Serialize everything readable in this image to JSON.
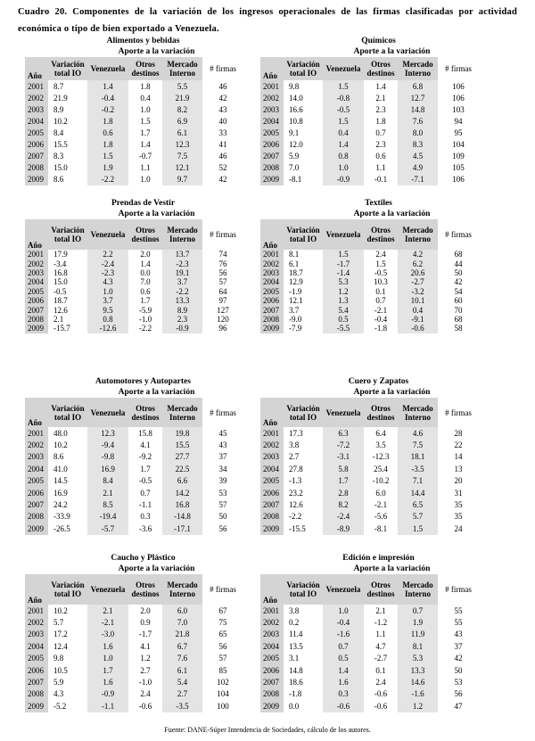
{
  "header": {
    "title": "Cuadro 20. Componentes de la variación de los ingresos operacionales de las firmas clasificadas por actividad económica o tipo de bien exportado a Venezuela."
  },
  "subheader": "Aporte a la variación",
  "columns": [
    "Año",
    "Variación total IO",
    "Venezuela",
    "Otros destinos",
    "Mercado Interno",
    "# firmas"
  ],
  "tables": [
    {
      "title": "Alimentos y bebidas",
      "rows": [
        [
          "2001",
          "8.7",
          "1.4",
          "1.8",
          "5.5",
          "46"
        ],
        [
          "2002",
          "21.9",
          "-0.4",
          "0.4",
          "21.9",
          "42"
        ],
        [
          "2003",
          "8.9",
          "-0.2",
          "1.0",
          "8.2",
          "43"
        ],
        [
          "2004",
          "10.2",
          "1.8",
          "1.5",
          "6.9",
          "40"
        ],
        [
          "2005",
          "8.4",
          "0.6",
          "1.7",
          "6.1",
          "33"
        ],
        [
          "2006",
          "15.5",
          "1.8",
          "1.4",
          "12.3",
          "41"
        ],
        [
          "2007",
          "8.3",
          "1.5",
          "-0.7",
          "7.5",
          "46"
        ],
        [
          "2008",
          "15.0",
          "1.9",
          "1.1",
          "12.1",
          "52"
        ],
        [
          "2009",
          "8.6",
          "-2.2",
          "1.0",
          "9.7",
          "42"
        ]
      ]
    },
    {
      "title": "Químicos",
      "rows": [
        [
          "2001",
          "9.8",
          "1.5",
          "1.4",
          "6.8",
          "106"
        ],
        [
          "2002",
          "14.0",
          "-0.8",
          "2.1",
          "12.7",
          "106"
        ],
        [
          "2003",
          "16.6",
          "-0.5",
          "2.3",
          "14.8",
          "103"
        ],
        [
          "2004",
          "10.8",
          "1.5",
          "1.8",
          "7.6",
          "94"
        ],
        [
          "2005",
          "9.1",
          "0.4",
          "0.7",
          "8.0",
          "95"
        ],
        [
          "2006",
          "12.0",
          "1.4",
          "2.3",
          "8.3",
          "104"
        ],
        [
          "2007",
          "5.9",
          "0.8",
          "0.6",
          "4.5",
          "109"
        ],
        [
          "2008",
          "7.0",
          "1.0",
          "1.1",
          "4.9",
          "105"
        ],
        [
          "2009",
          "-8.1",
          "-0.9",
          "-0.1",
          "-7.1",
          "106"
        ]
      ]
    },
    {
      "title": "Prendas de Vestir",
      "rows": [
        [
          "2001",
          "17.9",
          "2.2",
          "2.0",
          "13.7",
          "74"
        ],
        [
          "2002",
          "-3.4",
          "-2.4",
          "1.4",
          "-2.3",
          "76"
        ],
        [
          "2003",
          "16.8",
          "-2.3",
          "0.0",
          "19.1",
          "56"
        ],
        [
          "2004",
          "15.0",
          "4.3",
          "7.0",
          "3.7",
          "57"
        ],
        [
          "2005",
          "-0.5",
          "1.0",
          "0.6",
          "-2.2",
          "64"
        ],
        [
          "2006",
          "18.7",
          "3.7",
          "1.7",
          "13.3",
          "97"
        ],
        [
          "2007",
          "12.6",
          "9.5",
          "-5.9",
          "8.9",
          "127"
        ],
        [
          "2008",
          "2.1",
          "0.8",
          "-1.0",
          "2.3",
          "120"
        ],
        [
          "2009",
          "-15.7",
          "-12.6",
          "-2.2",
          "-0.9",
          "96"
        ]
      ]
    },
    {
      "title": "Textiles",
      "rows": [
        [
          "2001",
          "8.1",
          "1.5",
          "2.4",
          "4.2",
          "68"
        ],
        [
          "2002",
          "6.1",
          "-1.7",
          "1.5",
          "6.2",
          "44"
        ],
        [
          "2003",
          "18.7",
          "-1.4",
          "-0.5",
          "20.6",
          "50"
        ],
        [
          "2004",
          "12.9",
          "5.3",
          "10.3",
          "-2.7",
          "42"
        ],
        [
          "2005",
          "-1.9",
          "1.2",
          "0.1",
          "-3.2",
          "54"
        ],
        [
          "2006",
          "12.1",
          "1.3",
          "0.7",
          "10.1",
          "60"
        ],
        [
          "2007",
          "3.7",
          "5.4",
          "-2.1",
          "0.4",
          "70"
        ],
        [
          "2008",
          "-9.0",
          "0.5",
          "-0.4",
          "-9.1",
          "68"
        ],
        [
          "2009",
          "-7.9",
          "-5.5",
          "-1.8",
          "-0.6",
          "58"
        ]
      ]
    },
    {
      "title": "Automotores y Autopartes",
      "rows": [
        [
          "2001",
          "48.0",
          "12.3",
          "15.8",
          "19.8",
          "45"
        ],
        [
          "2002",
          "10.2",
          "-9.4",
          "4.1",
          "15.5",
          "43"
        ],
        [
          "2003",
          "8.6",
          "-9.8",
          "-9.2",
          "27.7",
          "37"
        ],
        [
          "2004",
          "41.0",
          "16.9",
          "1.7",
          "22.5",
          "34"
        ],
        [
          "2005",
          "14.5",
          "8.4",
          "-0.5",
          "6.6",
          "39"
        ],
        [
          "2006",
          "16.9",
          "2.1",
          "0.7",
          "14.2",
          "53"
        ],
        [
          "2007",
          "24.2",
          "8.5",
          "-1.1",
          "16.8",
          "57"
        ],
        [
          "2008",
          "-33.9",
          "-19.4",
          "0.3",
          "-14.8",
          "50"
        ],
        [
          "2009",
          "-26.5",
          "-5.7",
          "-3.6",
          "-17.1",
          "56"
        ]
      ]
    },
    {
      "title": "Cuero y Zapatos",
      "rows": [
        [
          "2001",
          "17.3",
          "6.3",
          "6.4",
          "4.6",
          "28"
        ],
        [
          "2002",
          "3.8",
          "-7.2",
          "3.5",
          "7.5",
          "22"
        ],
        [
          "2003",
          "2.7",
          "-3.1",
          "-12.3",
          "18.1",
          "14"
        ],
        [
          "2004",
          "27.8",
          "5.8",
          "25.4",
          "-3.5",
          "13"
        ],
        [
          "2005",
          "-1.3",
          "1.7",
          "-10.2",
          "7.1",
          "20"
        ],
        [
          "2006",
          "23.2",
          "2.8",
          "6.0",
          "14.4",
          "31"
        ],
        [
          "2007",
          "12.6",
          "8.2",
          "-2.1",
          "6.5",
          "35"
        ],
        [
          "2008",
          "-2.2",
          "-2.4",
          "-5.6",
          "5.7",
          "35"
        ],
        [
          "2009",
          "-15.5",
          "-8.9",
          "-8.1",
          "1.5",
          "24"
        ]
      ]
    },
    {
      "title": "Caucho y Plástico",
      "rows": [
        [
          "2001",
          "10.2",
          "2.1",
          "2.0",
          "6.0",
          "67"
        ],
        [
          "2002",
          "5.7",
          "-2.1",
          "0.9",
          "7.0",
          "75"
        ],
        [
          "2003",
          "17.2",
          "-3.0",
          "-1.7",
          "21.8",
          "65"
        ],
        [
          "2004",
          "12.4",
          "1.6",
          "4.1",
          "6.7",
          "56"
        ],
        [
          "2005",
          "9.8",
          "1.0",
          "1.2",
          "7.6",
          "57"
        ],
        [
          "2006",
          "10.5",
          "1.7",
          "2.7",
          "6.1",
          "85"
        ],
        [
          "2007",
          "5.9",
          "1.6",
          "-1.0",
          "5.4",
          "102"
        ],
        [
          "2008",
          "4.3",
          "-0.9",
          "2.4",
          "2.7",
          "104"
        ],
        [
          "2009",
          "-5.2",
          "-1.1",
          "-0.6",
          "-3.5",
          "100"
        ]
      ]
    },
    {
      "title": "Edición e impresión",
      "rows": [
        [
          "2001",
          "3.8",
          "1.0",
          "2.1",
          "0.7",
          "55"
        ],
        [
          "2002",
          "0.2",
          "-0.4",
          "-1.2",
          "1.9",
          "55"
        ],
        [
          "2003",
          "11.4",
          "-1.6",
          "1.1",
          "11.9",
          "43"
        ],
        [
          "2004",
          "13.5",
          "0.7",
          "4.7",
          "8.1",
          "37"
        ],
        [
          "2005",
          "3.1",
          "0.5",
          "-2.7",
          "5.3",
          "42"
        ],
        [
          "2006",
          "14.8",
          "1.4",
          "0.1",
          "13.3",
          "50"
        ],
        [
          "2007",
          "18.6",
          "1.6",
          "2.4",
          "14.6",
          "53"
        ],
        [
          "2008",
          "-1.8",
          "0.3",
          "-0.6",
          "-1.6",
          "56"
        ],
        [
          "2009",
          "0.0",
          "-0.6",
          "-0.6",
          "1.2",
          "47"
        ]
      ]
    }
  ],
  "footer": {
    "source": "Fuente: DANE-Súper Intendencia de Sociedades, cálculo de los autores."
  }
}
